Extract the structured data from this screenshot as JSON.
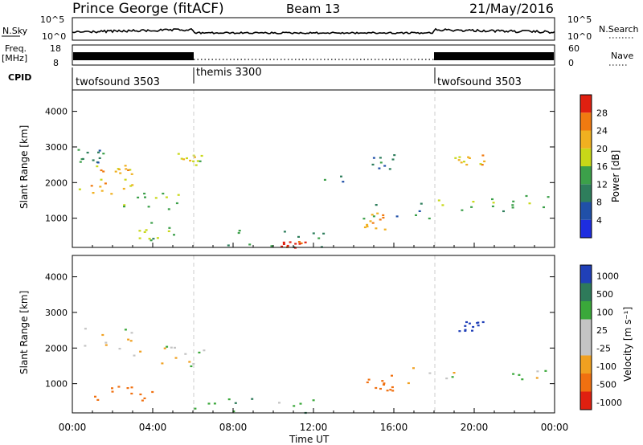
{
  "header": {
    "station": "Prince George (fitACF)",
    "beam": "Beam 13",
    "date": "21/May/2016"
  },
  "top_panels": {
    "nsky_label": "N.Sky",
    "nsky_ticks": [
      "10^5",
      "10^0"
    ],
    "nsearch_label": "N.Search",
    "nsearch_ticks": [
      "10^5",
      "10^0"
    ],
    "freq_label": "Freq.",
    "freq_unit": "[MHz]",
    "freq_ticks": [
      "18",
      "8"
    ],
    "nave_label": "Nave",
    "nave_ticks": [
      "60",
      "0"
    ],
    "cpid_label": "CPID",
    "cpid_segments": [
      {
        "label": "twofsound 3503",
        "start_h": 0,
        "end_h": 6
      },
      {
        "label": "themis 3300",
        "start_h": 6,
        "end_h": 18
      },
      {
        "label": "twofsound 3503",
        "start_h": 18,
        "end_h": 24
      }
    ]
  },
  "power_panel": {
    "ylabel": "Slant Range [km]",
    "yticks": [
      "1000",
      "2000",
      "3000",
      "4000"
    ],
    "colorbar_label": "Power [dB]",
    "colorbar_ticks": [
      "4",
      "8",
      "12",
      "16",
      "20",
      "24",
      "28"
    ],
    "colors": [
      "#1e2de0",
      "#2050a8",
      "#2e7e5c",
      "#3ca04a",
      "#c8d818",
      "#f0b020",
      "#f07a10",
      "#e02010"
    ]
  },
  "velocity_panel": {
    "ylabel": "Slant Range [km]",
    "yticks": [
      "1000",
      "2000",
      "3000",
      "4000"
    ],
    "colorbar_label": "Velocity  [m s⁻¹]",
    "colorbar_ticks": [
      "1000",
      "500",
      "100",
      "25",
      "-25",
      "-100",
      "-500",
      "-1000"
    ],
    "colors": [
      "#2040b8",
      "#2e7a5a",
      "#3aa83a",
      "#c4c4c4",
      "#c4c4c4",
      "#f0a020",
      "#f07010",
      "#e02010"
    ]
  },
  "x_axis": {
    "label": "Time UT",
    "ticks": [
      "00:00",
      "04:00",
      "08:00",
      "12:00",
      "16:00",
      "20:00",
      "00:00"
    ]
  },
  "chart_data": {
    "type": "heatmap",
    "title": "Prince George (fitACF)",
    "xlabel": "Time UT",
    "ylabel": "Slant Range [km]",
    "xlim_hours": [
      0,
      24
    ],
    "ylim_km": [
      180,
      4600
    ],
    "power_db_range": [
      0,
      30
    ],
    "velocity_range": [
      -1000,
      1000
    ],
    "power_regions": [
      {
        "t": [
          0.0,
          1.5
        ],
        "r": [
          2500,
          3000
        ],
        "db": 10
      },
      {
        "t": [
          0.3,
          3.0
        ],
        "r": [
          1650,
          2300
        ],
        "db": 20
      },
      {
        "t": [
          1.0,
          3.0
        ],
        "r": [
          2200,
          2500
        ],
        "db": 22
      },
      {
        "t": [
          2.5,
          5.8
        ],
        "r": [
          1200,
          1800
        ],
        "db": 14
      },
      {
        "t": [
          3.0,
          5.5
        ],
        "r": [
          400,
          900
        ],
        "db": 14
      },
      {
        "t": [
          4.8,
          6.5
        ],
        "r": [
          2500,
          2950
        ],
        "db": 18
      },
      {
        "t": [
          6.5,
          12.5
        ],
        "r": [
          200,
          700
        ],
        "db": 10
      },
      {
        "t": [
          10.3,
          11.8
        ],
        "r": [
          180,
          380
        ],
        "db": 28
      },
      {
        "t": [
          12.5,
          16.0
        ],
        "r": [
          2000,
          3000
        ],
        "db": 8
      },
      {
        "t": [
          14.0,
          22.0
        ],
        "r": [
          1000,
          1500
        ],
        "db": 10
      },
      {
        "t": [
          14.5,
          15.8
        ],
        "r": [
          700,
          1200
        ],
        "db": 24
      },
      {
        "t": [
          18.0,
          24.0
        ],
        "r": [
          1300,
          1700
        ],
        "db": 14
      },
      {
        "t": [
          19.0,
          20.5
        ],
        "r": [
          2450,
          2800
        ],
        "db": 20
      }
    ],
    "velocity_regions": [
      {
        "t": [
          0.5,
          3.5
        ],
        "r": [
          1800,
          2600
        ],
        "v": 0
      },
      {
        "t": [
          1.0,
          4.0
        ],
        "r": [
          500,
          1000
        ],
        "v": -150
      },
      {
        "t": [
          4.0,
          6.5
        ],
        "r": [
          1500,
          2100
        ],
        "v": 0
      },
      {
        "t": [
          6.0,
          12.0
        ],
        "r": [
          200,
          600
        ],
        "v": 50
      },
      {
        "t": [
          14.5,
          16.0
        ],
        "r": [
          800,
          1300
        ],
        "v": -200
      },
      {
        "t": [
          16.0,
          24.0
        ],
        "r": [
          1000,
          1500
        ],
        "v": 0
      },
      {
        "t": [
          19.2,
          20.5
        ],
        "r": [
          2500,
          2800
        ],
        "v": 800
      }
    ]
  }
}
